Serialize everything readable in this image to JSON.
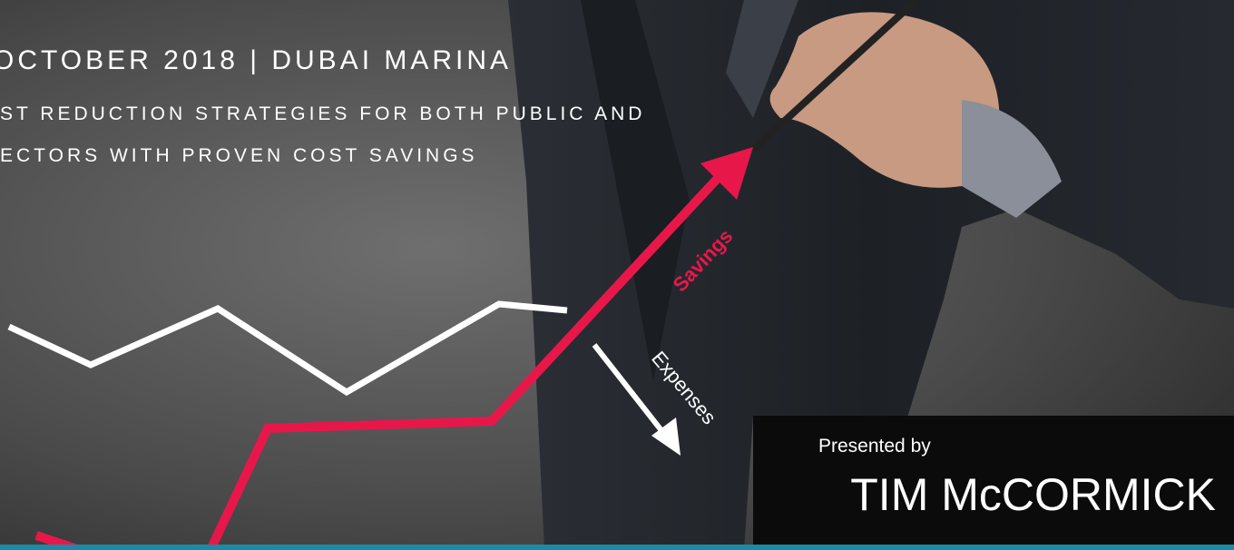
{
  "header": {
    "date_location": "OCTOBER 2018 | DUBAI MARINA",
    "subtitle_lines": [
      "ST REDUCTION STRATEGIES FOR BOTH PUBLIC AND",
      "ECTORS WITH PROVEN COST SAVINGS"
    ]
  },
  "graphic": {
    "savings_label": "Savings",
    "expenses_label": "Expenses"
  },
  "presenter": {
    "intro": "Presented by",
    "name": "TIM McCORMICK"
  }
}
